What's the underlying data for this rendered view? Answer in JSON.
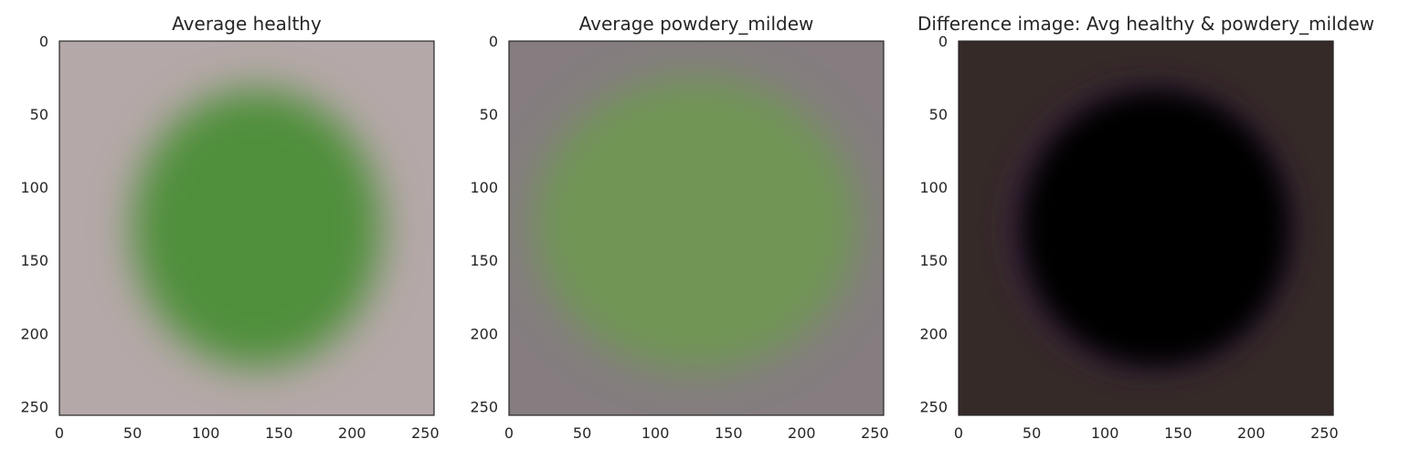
{
  "chart_data": [
    {
      "type": "heatmap",
      "title": "Average healthy",
      "xlim": [
        0,
        256
      ],
      "ylim": [
        256,
        0
      ],
      "xticks": [
        0,
        50,
        100,
        150,
        200,
        250
      ],
      "yticks": [
        0,
        50,
        100,
        150,
        200,
        250
      ],
      "grid": false,
      "image": {
        "background_color": "#b5a8a8",
        "blob_color": "#4f8f3a",
        "blob_center": [
          135,
          128
        ],
        "blob_radius": [
          85,
          95
        ]
      }
    },
    {
      "type": "heatmap",
      "title": "Average powdery_mildew",
      "xlim": [
        0,
        256
      ],
      "ylim": [
        256,
        0
      ],
      "xticks": [
        0,
        50,
        100,
        150,
        200,
        250
      ],
      "yticks": [
        0,
        50,
        100,
        150,
        200,
        250
      ],
      "grid": false,
      "image": {
        "background_color": "#857d7f",
        "blob_color": "#6f9654",
        "blob_center": [
          128,
          125
        ],
        "blob_radius": [
          110,
          100
        ]
      }
    },
    {
      "type": "heatmap",
      "title": "Difference image: Avg healthy & powdery_mildew",
      "xlim": [
        0,
        256
      ],
      "ylim": [
        256,
        0
      ],
      "xticks": [
        0,
        50,
        100,
        150,
        200,
        250
      ],
      "yticks": [
        0,
        50,
        100,
        150,
        200,
        250
      ],
      "grid": false,
      "image": {
        "background_color": "#352a28",
        "blob_color": "#000000",
        "rim_color": "#3a2440",
        "blob_center": [
          135,
          128
        ],
        "blob_radius": [
          92,
          95
        ]
      }
    }
  ]
}
